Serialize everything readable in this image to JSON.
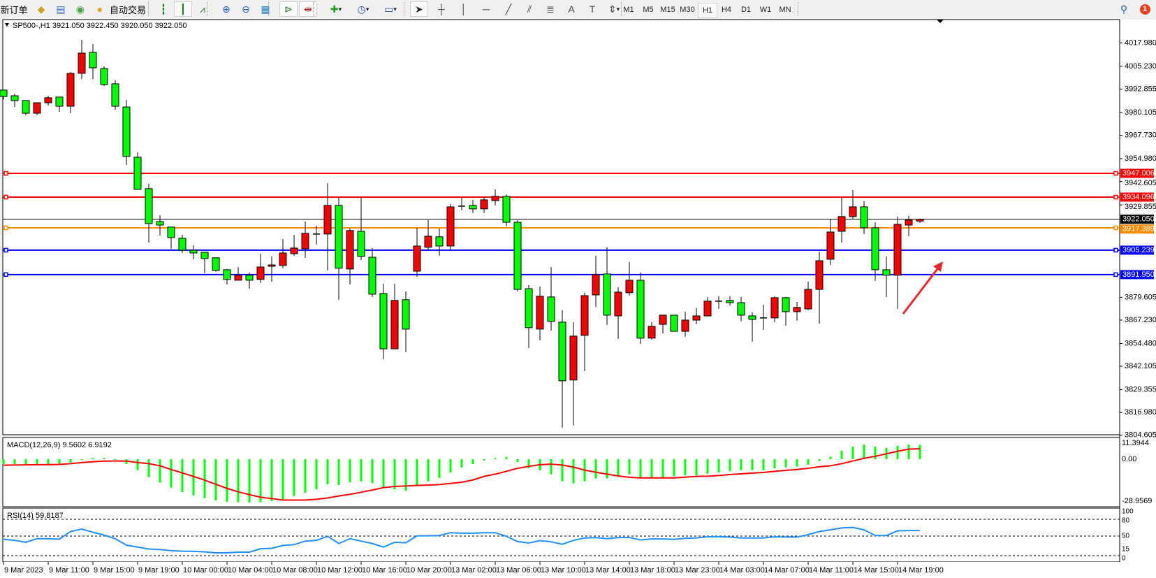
{
  "toolbar": {
    "new_order_label": "新订单",
    "auto_trading_label": "自动交易",
    "buttons": [
      {
        "icon": "gold-bars-icon",
        "glyph": "◆",
        "color": "#d4a020"
      },
      {
        "icon": "data-window-icon",
        "glyph": "▤",
        "color": "#3070c0"
      },
      {
        "icon": "signal-icon",
        "glyph": "◉",
        "color": "#40a040"
      },
      {
        "icon": "auto-trading-icon",
        "glyph": "●",
        "color": "#e0a020"
      },
      {
        "icon": "bar-chart-icon",
        "glyph": "┇",
        "color": "#208020"
      },
      {
        "icon": "candlestick-icon",
        "glyph": "┃",
        "color": "#208020",
        "pressed": true
      },
      {
        "icon": "line-chart-icon",
        "glyph": "⩘",
        "color": "#208020"
      },
      {
        "icon": "zoom-in-icon",
        "glyph": "⊕",
        "color": "#2060c0"
      },
      {
        "icon": "zoom-out-icon",
        "glyph": "⊖",
        "color": "#2060c0"
      },
      {
        "icon": "tile-windows-icon",
        "glyph": "▦",
        "color": "#2080c0"
      },
      {
        "icon": "auto-scroll-icon",
        "glyph": "⊳",
        "color": "#208020",
        "pressed": true
      },
      {
        "icon": "chart-shift-icon",
        "glyph": "⇹",
        "color": "#c02020",
        "pressed": true
      },
      {
        "icon": "indicators-icon",
        "glyph": "✚",
        "color": "#20a020",
        "dropdown": true
      },
      {
        "icon": "periods-clock-icon",
        "glyph": "◷",
        "color": "#2050b0",
        "dropdown": true
      },
      {
        "icon": "templates-icon",
        "glyph": "▭",
        "color": "#2050b0",
        "dropdown": true
      },
      {
        "icon": "cursor-icon",
        "glyph": "➤",
        "color": "#222",
        "pressed": true
      },
      {
        "icon": "crosshair-icon",
        "glyph": "┼",
        "color": "#444"
      },
      {
        "icon": "vertical-line-icon",
        "glyph": "│",
        "color": "#444"
      },
      {
        "icon": "horizontal-line-icon",
        "glyph": "─",
        "color": "#444"
      },
      {
        "icon": "trendline-icon",
        "glyph": "╱",
        "color": "#444"
      },
      {
        "icon": "equidistant-channel-icon",
        "glyph": "⫽",
        "color": "#444"
      },
      {
        "icon": "fibonacci-icon",
        "glyph": "≣",
        "color": "#444"
      },
      {
        "icon": "text-icon",
        "glyph": "A",
        "color": "#444"
      },
      {
        "icon": "text-label-icon",
        "glyph": "T",
        "color": "#444"
      },
      {
        "icon": "arrows-icon",
        "glyph": "⇕",
        "color": "#444",
        "dropdown": true
      }
    ],
    "timeframes": [
      "M1",
      "M5",
      "M15",
      "M30",
      "H1",
      "H4",
      "D1",
      "W1",
      "MN"
    ],
    "active_timeframe": "H1",
    "notification_count": "1"
  },
  "chart": {
    "symbol_header": "SP500-,H1  3921.050 3922.450 3920.050 3922.050",
    "up_color": "#ff0000",
    "down_color": "#00ff00",
    "price_axis_labels": [
      "4017.980",
      "4005.230",
      "3992.855",
      "3980.105",
      "3967.730",
      "3954.980",
      "3942.605",
      "3929.855",
      "3879.605",
      "3867.230",
      "3854.480",
      "3842.105",
      "3829.355",
      "3816.980",
      "3804.605"
    ],
    "price_range": [
      3804.605,
      4017.98
    ],
    "price_lines": [
      {
        "value": "3947.006",
        "color": "#ff0000"
      },
      {
        "value": "3934.096",
        "color": "#ff0000"
      },
      {
        "value": "3917.389",
        "color": "#ff8c00"
      },
      {
        "value": "3905.239",
        "color": "#0000ff"
      },
      {
        "value": "3891.950",
        "color": "#0000ff"
      }
    ],
    "bid_line": {
      "value": "3922.050",
      "color": "#000000"
    },
    "annotation_arrow_color": "#e8262c",
    "time_labels": [
      "9 Mar 2023",
      "9 Mar 11:00",
      "9 Mar 15:00",
      "9 Mar 19:00",
      "10 Mar 00:00",
      "10 Mar 04:00",
      "10 Mar 08:00",
      "10 Mar 12:00",
      "10 Mar 16:00",
      "10 Mar 20:00",
      "13 Mar 02:00",
      "13 Mar 06:00",
      "13 Mar 10:00",
      "13 Mar 14:00",
      "13 Mar 18:00",
      "13 Mar 23:00",
      "14 Mar 03:00",
      "14 Mar 07:00",
      "14 Mar 11:00",
      "14 Mar 15:00",
      "14 Mar 19:00"
    ],
    "candles_ohlc": [
      [
        3992.3,
        3992.3,
        3987.3,
        3988.8
      ],
      [
        3989.2,
        3990.4,
        3983.1,
        3986.6
      ],
      [
        3986.6,
        3986.6,
        3978.6,
        3979.7
      ],
      [
        3979.7,
        3985.4,
        3978.6,
        3985.4
      ],
      [
        3985.4,
        3989.2,
        3983.9,
        3988.1
      ],
      [
        3988.5,
        3988.5,
        3980.5,
        3983.5
      ],
      [
        3983.5,
        4002.1,
        3979.7,
        4001.4
      ],
      [
        4001.4,
        4019.6,
        3998.3,
        4012.4
      ],
      [
        4012.8,
        4017.3,
        3998.3,
        4004.4
      ],
      [
        4004.0,
        4005.2,
        3994.5,
        3995.3
      ],
      [
        3995.7,
        3997.6,
        3981.6,
        3983.5
      ],
      [
        3983.1,
        3986.9,
        3951.6,
        3956.2
      ],
      [
        3955.8,
        3958.4,
        3938.3,
        3938.3
      ],
      [
        3938.7,
        3941.3,
        3909.4,
        3919.7
      ],
      [
        3920.8,
        3924.2,
        3913.2,
        3918.9
      ],
      [
        3917.8,
        3917.8,
        3906.0,
        3912.1
      ],
      [
        3911.7,
        3913.6,
        3903.7,
        3905.2
      ],
      [
        3905.2,
        3907.9,
        3900.3,
        3903.7
      ],
      [
        3904.1,
        3904.1,
        3892.7,
        3900.7
      ],
      [
        3901.1,
        3901.1,
        3893.5,
        3894.2
      ],
      [
        3894.6,
        3895.0,
        3886.6,
        3889.3
      ],
      [
        3888.9,
        3896.1,
        3888.9,
        3891.6
      ],
      [
        3891.6,
        3893.1,
        3884.3,
        3888.9
      ],
      [
        3889.3,
        3903.3,
        3887.4,
        3896.1
      ],
      [
        3896.5,
        3901.8,
        3888.1,
        3897.2
      ],
      [
        3896.9,
        3911.3,
        3895.4,
        3903.7
      ],
      [
        3903.3,
        3913.6,
        3902.2,
        3906.4
      ],
      [
        3906.0,
        3920.8,
        3901.1,
        3914.4
      ],
      [
        3914.0,
        3918.5,
        3908.3,
        3914.0
      ],
      [
        3914.0,
        3941.7,
        3894.2,
        3929.6
      ],
      [
        3929.6,
        3933.7,
        3878.3,
        3895.4
      ],
      [
        3895.0,
        3917.0,
        3886.6,
        3915.9
      ],
      [
        3915.5,
        3934.1,
        3899.9,
        3901.8
      ],
      [
        3901.4,
        3906.4,
        3879.8,
        3881.3
      ],
      [
        3881.7,
        3887.0,
        3845.9,
        3851.6
      ],
      [
        3851.6,
        3887.0,
        3851.3,
        3877.9
      ],
      [
        3878.3,
        3882.8,
        3849.7,
        3862.3
      ],
      [
        3893.8,
        3917.4,
        3890.8,
        3907.5
      ],
      [
        3906.8,
        3921.6,
        3905.6,
        3912.8
      ],
      [
        3912.5,
        3917.0,
        3902.2,
        3907.5
      ],
      [
        3907.5,
        3930.3,
        3905.6,
        3928.8
      ],
      [
        3929.2,
        3934.1,
        3926.9,
        3929.2
      ],
      [
        3929.6,
        3932.6,
        3925.4,
        3927.7
      ],
      [
        3927.7,
        3934.1,
        3925.4,
        3932.6
      ],
      [
        3932.2,
        3938.3,
        3929.6,
        3934.5
      ],
      [
        3934.5,
        3935.6,
        3918.2,
        3920.4
      ],
      [
        3920.4,
        3921.6,
        3882.8,
        3883.9
      ],
      [
        3884.3,
        3886.2,
        3852.0,
        3863.1
      ],
      [
        3862.3,
        3885.5,
        3856.2,
        3880.2
      ],
      [
        3879.8,
        3896.1,
        3861.5,
        3866.5
      ],
      [
        3866.1,
        3872.6,
        3808.7,
        3834.2
      ],
      [
        3834.6,
        3866.1,
        3809.9,
        3858.5
      ],
      [
        3858.9,
        3882.1,
        3839.5,
        3880.5
      ],
      [
        3880.9,
        3902.2,
        3874.4,
        3891.9
      ],
      [
        3892.3,
        3906.8,
        3864.6,
        3869.9
      ],
      [
        3869.5,
        3885.1,
        3857.0,
        3882.4
      ],
      [
        3882.1,
        3898.8,
        3880.5,
        3888.9
      ],
      [
        3888.9,
        3893.1,
        3854.3,
        3857.4
      ],
      [
        3857.4,
        3866.1,
        3856.6,
        3863.8
      ],
      [
        3864.9,
        3869.9,
        3860.0,
        3869.9
      ],
      [
        3869.9,
        3869.9,
        3861.1,
        3861.1
      ],
      [
        3861.1,
        3871.8,
        3858.1,
        3867.2
      ],
      [
        3867.2,
        3873.7,
        3864.9,
        3869.5
      ],
      [
        3869.5,
        3879.8,
        3869.1,
        3877.5
      ],
      [
        3877.5,
        3880.2,
        3873.3,
        3877.5
      ],
      [
        3877.9,
        3880.2,
        3875.2,
        3876.7
      ],
      [
        3876.7,
        3879.8,
        3866.5,
        3869.9
      ],
      [
        3869.5,
        3871.4,
        3855.5,
        3867.6
      ],
      [
        3868.4,
        3875.6,
        3861.9,
        3868.4
      ],
      [
        3868.4,
        3880.2,
        3866.1,
        3879.4
      ],
      [
        3879.4,
        3879.8,
        3864.2,
        3871.8
      ],
      [
        3871.8,
        3877.1,
        3866.9,
        3874.1
      ],
      [
        3873.3,
        3888.1,
        3872.6,
        3883.9
      ],
      [
        3883.9,
        3904.5,
        3865.3,
        3899.5
      ],
      [
        3900.3,
        3922.3,
        3897.2,
        3915.1
      ],
      [
        3915.5,
        3933.7,
        3909.4,
        3923.5
      ],
      [
        3923.5,
        3937.9,
        3922.3,
        3928.8
      ],
      [
        3928.8,
        3931.8,
        3914.0,
        3917.4
      ],
      [
        3917.4,
        3920.4,
        3888.5,
        3894.6
      ],
      [
        3894.6,
        3901.8,
        3879.8,
        3891.6
      ],
      [
        3891.6,
        3923.5,
        3873.3,
        3919.3
      ],
      [
        3918.9,
        3923.9,
        3912.8,
        3921.6
      ],
      [
        3921.05,
        3922.45,
        3920.05,
        3922.05
      ]
    ]
  },
  "macd": {
    "label": "MACD(12,26,9) 9.5602 6.9192",
    "axis_labels": [
      "11.3944",
      "0.00",
      "-28.9569"
    ],
    "range": [
      -28.9569,
      11.3944
    ],
    "histogram_color": "#00ff00",
    "signal_color": "#ff0000",
    "histogram": [
      -3.3,
      -3.3,
      -3.3,
      -3.3,
      -3.3,
      -3.3,
      -2.2,
      -0.5,
      0.8,
      0.8,
      -0.3,
      -3.3,
      -7.3,
      -12.0,
      -15.7,
      -19.0,
      -22.0,
      -24.1,
      -26.0,
      -27.6,
      -28.4,
      -28.7,
      -28.96,
      -28.6,
      -28.0,
      -26.8,
      -24.6,
      -22.4,
      -20.1,
      -16.7,
      -17.3,
      -15.4,
      -14.8,
      -16.0,
      -19.0,
      -20.1,
      -21.0,
      -18.1,
      -14.8,
      -12.5,
      -8.9,
      -5.5,
      -3.3,
      -0.8,
      0.8,
      1.5,
      -1.9,
      -6.0,
      -7.4,
      -10.1,
      -14.8,
      -16.2,
      -14.8,
      -12.9,
      -12.9,
      -11.7,
      -10.1,
      -12.5,
      -12.5,
      -12.5,
      -11.4,
      -10.9,
      -10.9,
      -9.7,
      -8.9,
      -7.8,
      -7.4,
      -7.4,
      -7.4,
      -6.0,
      -5.5,
      -5.0,
      -3.6,
      -1.2,
      1.7,
      5.6,
      8.3,
      9.8,
      8.3,
      7.5,
      8.9,
      9.8,
      9.56
    ],
    "signal": [
      -4.0,
      -3.9,
      -3.8,
      -3.7,
      -3.6,
      -3.5,
      -3.0,
      -2.3,
      -1.7,
      -1.3,
      -1.2,
      -1.2,
      -2.2,
      -3.0,
      -4.4,
      -6.9,
      -9.2,
      -11.5,
      -14.0,
      -16.8,
      -19.5,
      -21.8,
      -23.7,
      -25.4,
      -26.3,
      -27.3,
      -27.3,
      -27.3,
      -26.8,
      -25.9,
      -24.6,
      -23.5,
      -22.1,
      -20.6,
      -19.0,
      -18.2,
      -17.9,
      -17.6,
      -17.3,
      -17.0,
      -16.2,
      -15.4,
      -13.9,
      -11.5,
      -10.0,
      -8.1,
      -6.1,
      -4.8,
      -3.7,
      -3.3,
      -3.9,
      -5.3,
      -7.3,
      -8.7,
      -10.0,
      -11.2,
      -12.1,
      -12.5,
      -12.5,
      -12.5,
      -12.5,
      -12.0,
      -11.5,
      -11.4,
      -10.9,
      -10.3,
      -9.8,
      -9.3,
      -8.9,
      -8.1,
      -7.5,
      -6.9,
      -6.1,
      -5.1,
      -4.4,
      -3.0,
      -1.2,
      0.6,
      1.9,
      3.6,
      5.3,
      6.7,
      6.92
    ]
  },
  "rsi": {
    "label": "RSI(14) 59.8187",
    "axis_labels": [
      "100",
      "80",
      "50",
      "15",
      "0"
    ],
    "levels": [
      80,
      50,
      15
    ],
    "line_color": "#1e90ff",
    "values": [
      44.4,
      42.3,
      38.9,
      45.3,
      45.3,
      44.4,
      58.1,
      62.4,
      56.9,
      51.7,
      45.3,
      33.7,
      30.3,
      26.9,
      26.0,
      23.9,
      23.0,
      22.6,
      21.7,
      20.0,
      20.0,
      21.3,
      21.3,
      27.3,
      28.1,
      33.3,
      34.6,
      41.0,
      42.3,
      49.6,
      36.7,
      45.3,
      41.0,
      36.7,
      30.3,
      38.9,
      38.0,
      50.4,
      50.4,
      50.9,
      56.0,
      55.1,
      55.1,
      56.0,
      56.0,
      49.6,
      40.1,
      37.6,
      41.9,
      39.7,
      35.4,
      42.3,
      46.6,
      47.4,
      45.3,
      47.4,
      47.4,
      43.1,
      44.9,
      44.9,
      44.0,
      46.1,
      46.6,
      48.7,
      48.7,
      48.3,
      46.6,
      46.6,
      46.6,
      48.7,
      48.3,
      48.3,
      52.6,
      58.1,
      61.1,
      64.6,
      65.4,
      61.1,
      50.9,
      50.9,
      59.4,
      59.9,
      59.8187
    ]
  }
}
